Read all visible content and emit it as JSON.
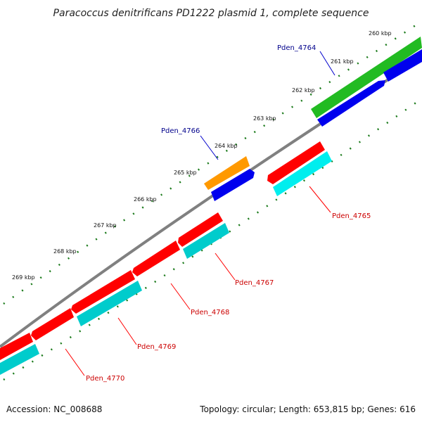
{
  "title": "Paracoccus denitrificans PD1222 plasmid 1, complete sequence",
  "footer": {
    "accession": "Accession: NC_008688",
    "topology": "Topology: circular; Length: 653,815 bp; Genes: 616"
  },
  "ticks": [
    {
      "label": "260 kbp"
    },
    {
      "label": "261 kbp"
    },
    {
      "label": "262 kbp"
    },
    {
      "label": "263 kbp"
    },
    {
      "label": "264 kbp"
    },
    {
      "label": "265 kbp"
    },
    {
      "label": "266 kbp"
    },
    {
      "label": "267 kbp"
    },
    {
      "label": "268 kbp"
    },
    {
      "label": "269 kbp"
    }
  ],
  "gene_labels": [
    {
      "label": "Pden_4764",
      "color": "#00008b"
    },
    {
      "label": "Pden_4766",
      "color": "#00008b"
    },
    {
      "label": "Pden_4765",
      "color": "#cc0000"
    },
    {
      "label": "Pden_4767",
      "color": "#cc0000"
    },
    {
      "label": "Pden_4768",
      "color": "#cc0000"
    },
    {
      "label": "Pden_4769",
      "color": "#cc0000"
    },
    {
      "label": "Pden_4770",
      "color": "#cc0000"
    }
  ],
  "colors": {
    "backbone": "#808080",
    "tick": "#1a7a1a",
    "forward_cds": "#0000ee",
    "forward_gene": "#22bb22",
    "forward_orange": "#ff9900",
    "reverse_cds": "#ff0000",
    "reverse_gene": "#00dddd"
  }
}
